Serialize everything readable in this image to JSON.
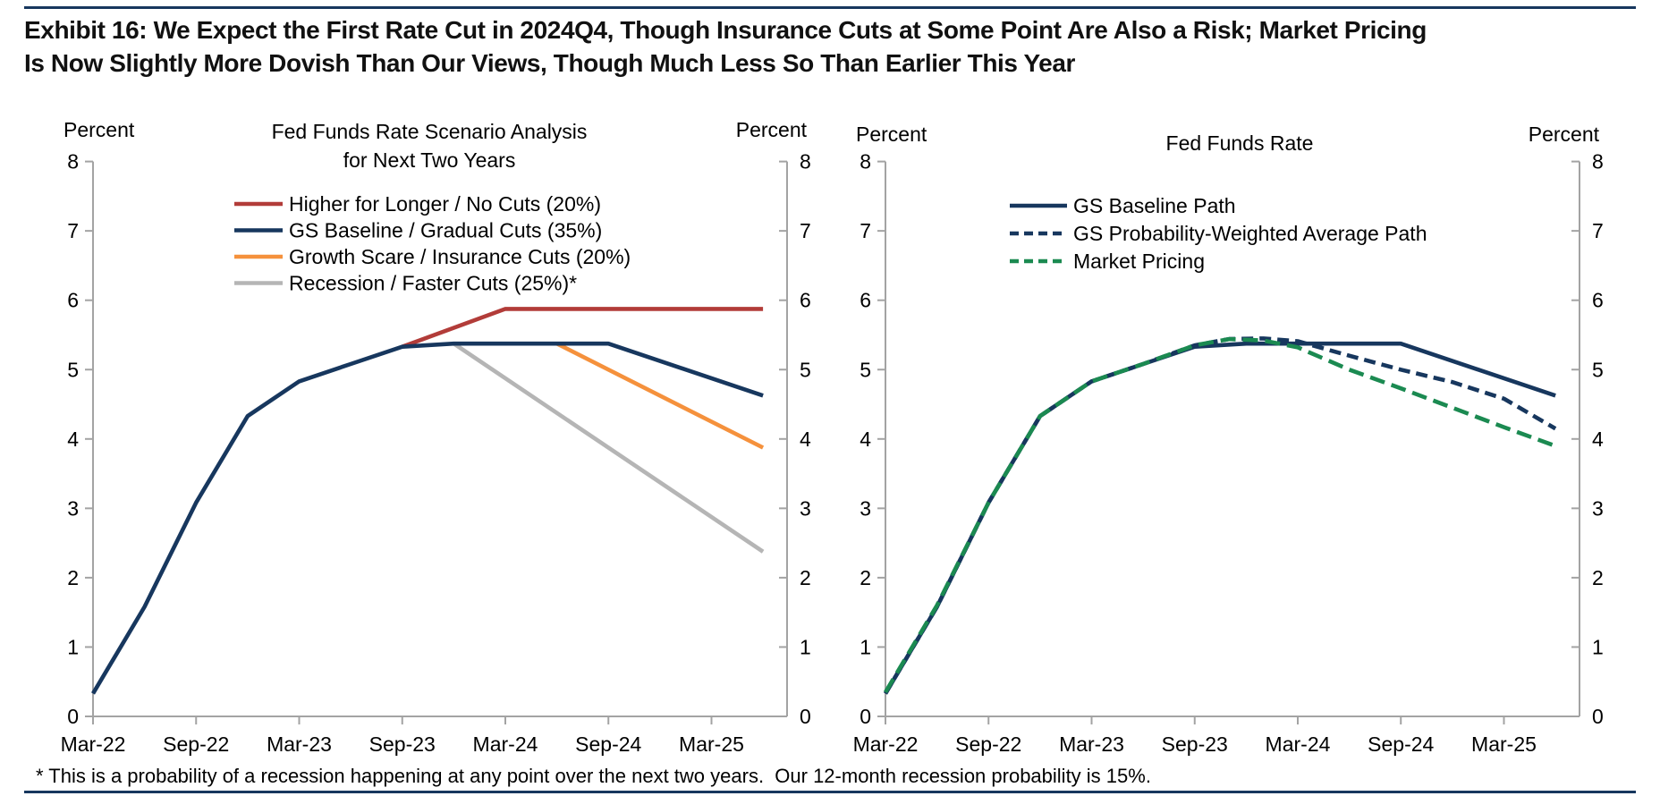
{
  "page": {
    "exhibit_title": "Exhibit 16: We Expect the First Rate Cut in 2024Q4, Though Insurance Cuts at Some Point Are Also a Risk; Market Pricing Is Now Slightly More Dovish Than Our Views, Though Much Less So Than Earlier This Year",
    "footnote": "* This is a probability of a recession happening at any point over the next two years.  Our 12-month recession probability is 15%.",
    "rule_color": "#17375e"
  },
  "chart_data": [
    {
      "type": "line",
      "title": "Fed Funds Rate Scenario Analysis\nfor Next Two Years",
      "y_axis_label_left": "Percent",
      "y_axis_label_right": "Percent",
      "ylim": [
        0,
        8
      ],
      "y_ticks": [
        0,
        1,
        2,
        3,
        4,
        5,
        6,
        7,
        8
      ],
      "x_tick_labels": [
        "Mar-22",
        "Sep-22",
        "Mar-23",
        "Sep-23",
        "Mar-24",
        "Sep-24",
        "Mar-25"
      ],
      "x_tick_months": [
        0,
        6,
        12,
        18,
        24,
        30,
        36
      ],
      "x_domain_months": [
        0,
        40.4
      ],
      "grid": false,
      "legend_position": "top-center",
      "draw_order": [
        0,
        3,
        2,
        1
      ],
      "series": [
        {
          "name": "Higher for Longer / No Cuts (20%)",
          "color": "#b23c39",
          "style": "solid",
          "points": [
            [
              18,
              5.33
            ],
            [
              24,
              5.875
            ],
            [
              39,
              5.875
            ]
          ]
        },
        {
          "name": "GS Baseline / Gradual Cuts (35%)",
          "color": "#17375e",
          "style": "solid",
          "points": [
            [
              0,
              0.33
            ],
            [
              3,
              1.58
            ],
            [
              6,
              3.08
            ],
            [
              9,
              4.33
            ],
            [
              12,
              4.83
            ],
            [
              15,
              5.08
            ],
            [
              18,
              5.33
            ],
            [
              21,
              5.375
            ],
            [
              30,
              5.375
            ],
            [
              39,
              4.625
            ]
          ]
        },
        {
          "name": "Growth Scare / Insurance Cuts (20%)",
          "color": "#f5913c",
          "style": "solid",
          "points": [
            [
              27,
              5.375
            ],
            [
              39,
              3.875
            ]
          ]
        },
        {
          "name": "Recession / Faster Cuts (25%)*",
          "color": "#b5b5b5",
          "style": "solid",
          "points": [
            [
              21,
              5.375
            ],
            [
              39,
              2.375
            ]
          ]
        }
      ]
    },
    {
      "type": "line",
      "title": "Fed Funds Rate",
      "y_axis_label_left": "Percent",
      "y_axis_label_right": "Percent",
      "ylim": [
        0,
        8
      ],
      "y_ticks": [
        0,
        1,
        2,
        3,
        4,
        5,
        6,
        7,
        8
      ],
      "x_tick_labels": [
        "Mar-22",
        "Sep-22",
        "Mar-23",
        "Sep-23",
        "Mar-24",
        "Sep-24",
        "Mar-25"
      ],
      "x_tick_months": [
        0,
        6,
        12,
        18,
        24,
        30,
        36
      ],
      "x_domain_months": [
        0,
        40.4
      ],
      "grid": false,
      "legend_position": "top-center",
      "draw_order": [
        0,
        1,
        2
      ],
      "series": [
        {
          "name": "GS Baseline Path",
          "color": "#17375e",
          "style": "solid",
          "points": [
            [
              0,
              0.33
            ],
            [
              3,
              1.58
            ],
            [
              6,
              3.08
            ],
            [
              9,
              4.33
            ],
            [
              12,
              4.83
            ],
            [
              15,
              5.08
            ],
            [
              18,
              5.33
            ],
            [
              21,
              5.375
            ],
            [
              30,
              5.375
            ],
            [
              39,
              4.625
            ]
          ]
        },
        {
          "name": "GS Probability-Weighted Average Path",
          "color": "#17375e",
          "style": "dashed",
          "dash": "13 7",
          "points": [
            [
              0,
              0.33
            ],
            [
              3,
              1.58
            ],
            [
              6,
              3.08
            ],
            [
              9,
              4.33
            ],
            [
              12,
              4.83
            ],
            [
              15,
              5.08
            ],
            [
              18,
              5.35
            ],
            [
              20,
              5.44
            ],
            [
              22,
              5.45
            ],
            [
              24,
              5.41
            ],
            [
              27,
              5.2
            ],
            [
              30,
              5.0
            ],
            [
              33,
              4.82
            ],
            [
              36,
              4.58
            ],
            [
              39,
              4.15
            ]
          ]
        },
        {
          "name": "Market Pricing",
          "color": "#1b8a51",
          "style": "dashed",
          "dash": "17 8",
          "points": [
            [
              0,
              0.35
            ],
            [
              3,
              1.6
            ],
            [
              6,
              3.08
            ],
            [
              9,
              4.33
            ],
            [
              12,
              4.83
            ],
            [
              15,
              5.08
            ],
            [
              18,
              5.35
            ],
            [
              20,
              5.44
            ],
            [
              22,
              5.42
            ],
            [
              24,
              5.32
            ],
            [
              27,
              5.0
            ],
            [
              30,
              4.73
            ],
            [
              33,
              4.45
            ],
            [
              36,
              4.17
            ],
            [
              39,
              3.9
            ]
          ]
        }
      ]
    }
  ]
}
